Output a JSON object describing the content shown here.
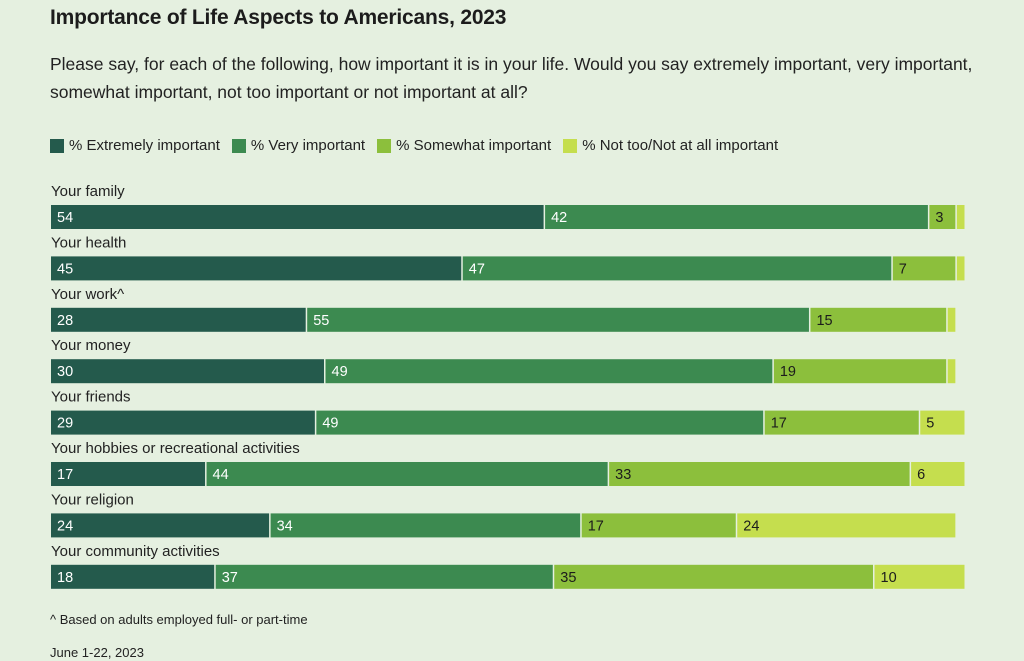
{
  "title": "Importance of Life Aspects to Americans, 2023",
  "subtitle": "Please say, for each of the following, how important it is in your life. Would you say extremely important, very important, somewhat important, not too important or not important at all?",
  "footnote": "^ Based on adults employed full- or part-time",
  "date": "June 1-22, 2023",
  "colors": {
    "extremely": "#245a4c",
    "very": "#3c8a50",
    "somewhat": "#8cbf3c",
    "not_too": "#c5de4e"
  },
  "chart_data": {
    "type": "bar",
    "orientation": "horizontal",
    "stacked": true,
    "xlim": [
      0,
      100
    ],
    "legend_position": "top-left",
    "series": [
      {
        "name": "% Extremely important",
        "key": "extremely",
        "label_color": "#ffffff"
      },
      {
        "name": "% Very important",
        "key": "very",
        "label_color": "#ffffff"
      },
      {
        "name": "% Somewhat important",
        "key": "somewhat",
        "label_color": "#1c1c1c"
      },
      {
        "name": "% Not too/Not at all important",
        "key": "not_too",
        "label_color": "#1c1c1c"
      }
    ],
    "categories": [
      {
        "label": "Your family",
        "values": [
          54,
          42,
          3,
          1
        ],
        "show": [
          true,
          true,
          true,
          false
        ]
      },
      {
        "label": "Your health",
        "values": [
          45,
          47,
          7,
          1
        ],
        "show": [
          true,
          true,
          true,
          false
        ]
      },
      {
        "label": "Your work^",
        "values": [
          28,
          55,
          15,
          1
        ],
        "show": [
          true,
          true,
          true,
          false
        ]
      },
      {
        "label": "Your money",
        "values": [
          30,
          49,
          19,
          1
        ],
        "show": [
          true,
          true,
          true,
          false
        ]
      },
      {
        "label": "Your friends",
        "values": [
          29,
          49,
          17,
          5
        ],
        "show": [
          true,
          true,
          true,
          true
        ]
      },
      {
        "label": "Your hobbies or recreational activities",
        "values": [
          17,
          44,
          33,
          6
        ],
        "show": [
          true,
          true,
          true,
          true
        ]
      },
      {
        "label": "Your religion",
        "values": [
          24,
          34,
          17,
          24
        ],
        "show": [
          true,
          true,
          true,
          true
        ]
      },
      {
        "label": "Your community activities",
        "values": [
          18,
          37,
          35,
          10
        ],
        "show": [
          true,
          true,
          true,
          true
        ]
      }
    ]
  }
}
